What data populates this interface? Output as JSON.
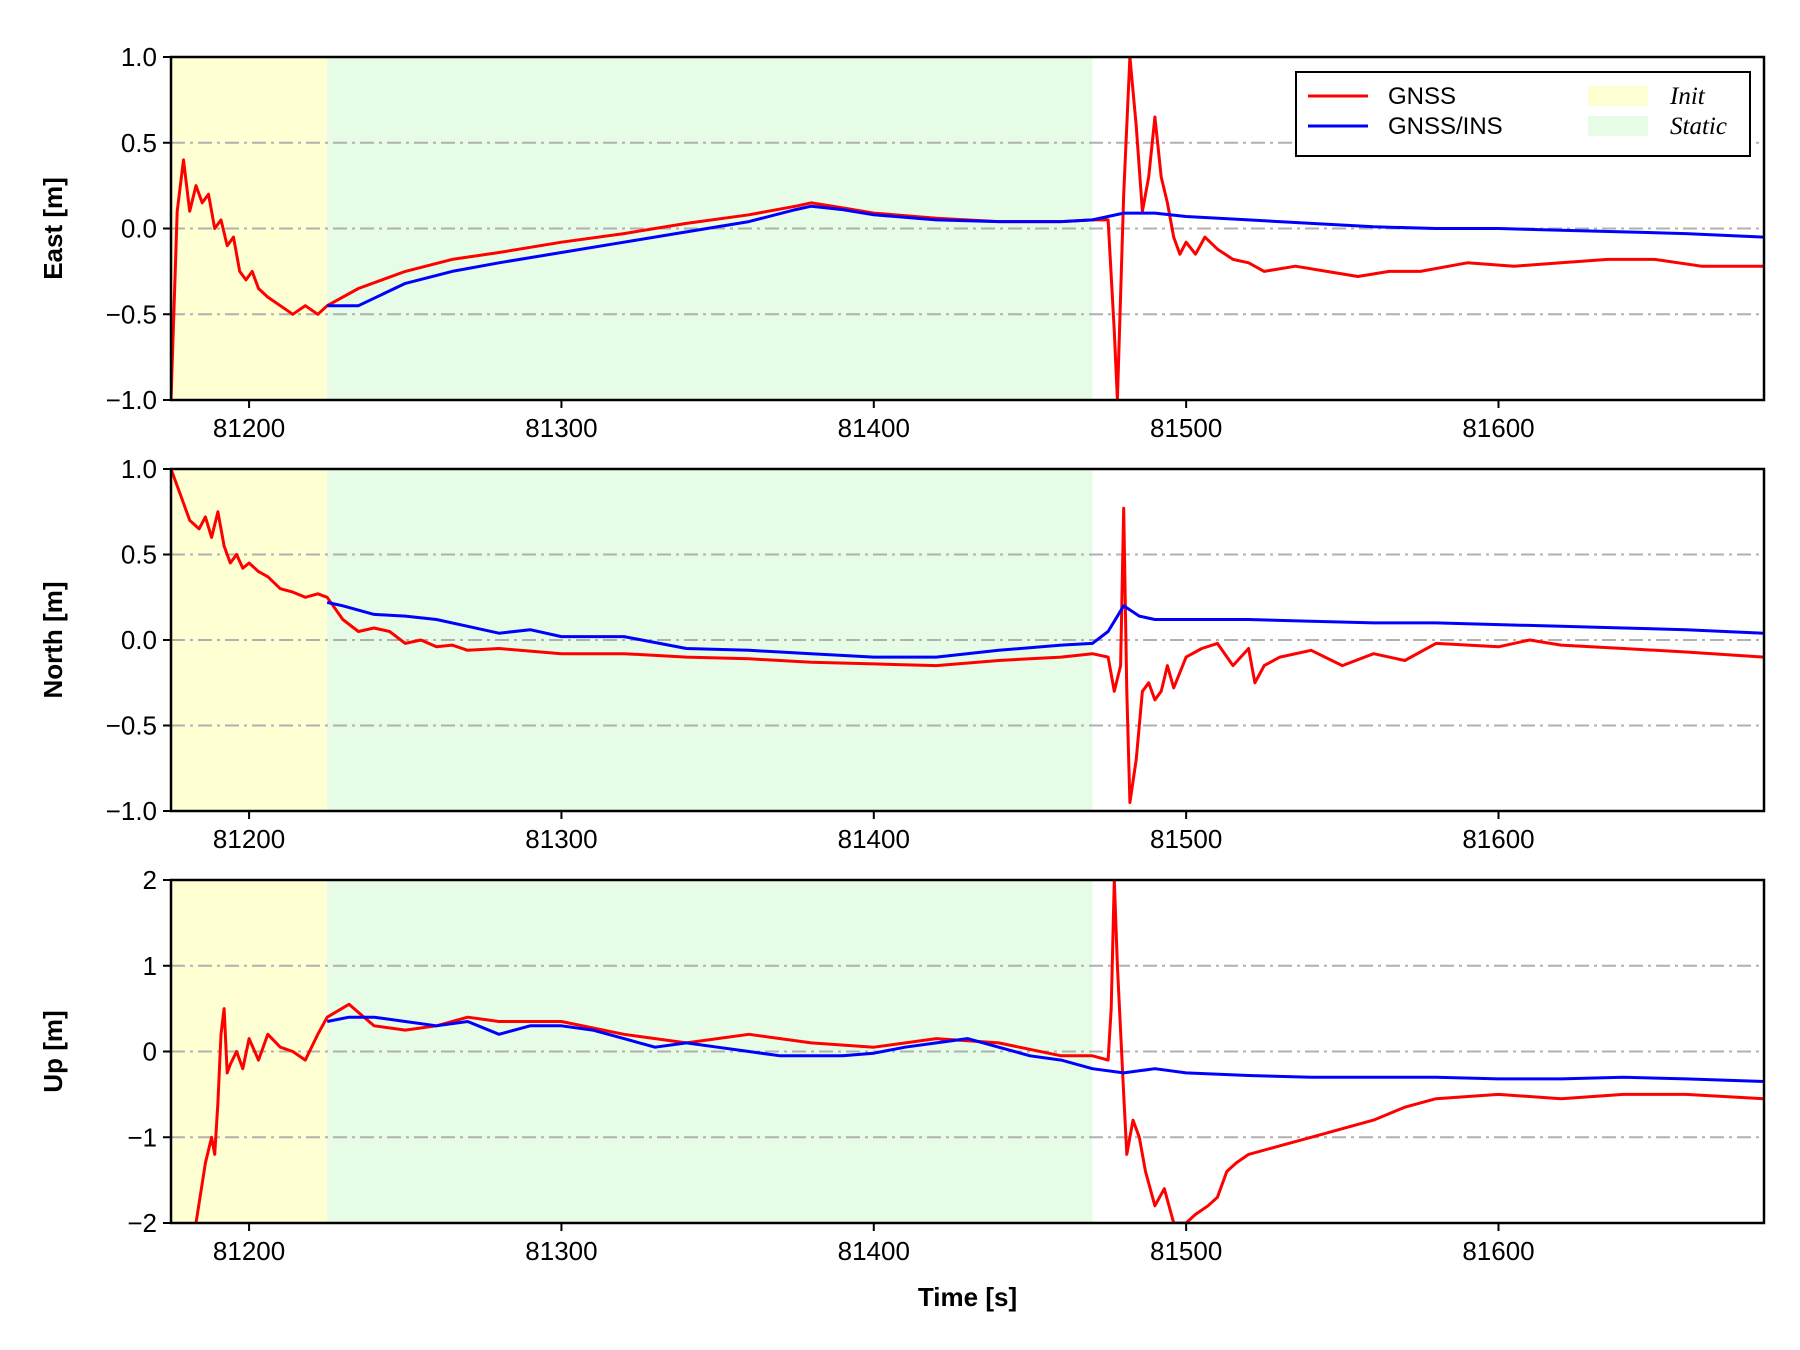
{
  "chart_data": {
    "type": "line",
    "layout": "3 vertically stacked subplots sharing the time axis",
    "xlabel": "Time [s]",
    "xlim": [
      81175,
      81685
    ],
    "xticks": [
      81200,
      81300,
      81400,
      81500,
      81600
    ],
    "xtick_labels": [
      "81200",
      "81300",
      "81400",
      "81500",
      "81600"
    ],
    "grid": "horizontal dash-dot gray lines at y ticks",
    "legend": {
      "placement": "top-right of first subplot",
      "entries": [
        {
          "label": "GNSS",
          "kind": "line",
          "color": "#ff0000"
        },
        {
          "label": "GNSS/INS",
          "kind": "line",
          "color": "#0000ff"
        },
        {
          "label": "Init",
          "kind": "patch",
          "color": "#ffffd4"
        },
        {
          "label": "Static",
          "kind": "patch",
          "color": "#e6fce6"
        }
      ]
    },
    "shaded_regions": [
      {
        "label": "Init",
        "x_start": 81175,
        "x_end": 81225,
        "color": "#ffffd4"
      },
      {
        "label": "Static",
        "x_start": 81225,
        "x_end": 81470,
        "color": "#e6fce6"
      }
    ],
    "subplots": [
      {
        "ylabel": "East [m]",
        "ylim": [
          -1.0,
          1.0
        ],
        "yticks": [
          -1.0,
          -0.5,
          0.0,
          0.5,
          1.0
        ],
        "ytick_labels": [
          "−1.0",
          "−0.5",
          "0.0",
          "0.5",
          "1.0"
        ],
        "series": [
          {
            "name": "GNSS",
            "color": "#ff0000",
            "x": [
              81175,
              81177,
              81179,
              81181,
              81183,
              81185,
              81187,
              81189,
              81191,
              81193,
              81195,
              81197,
              81199,
              81201,
              81203,
              81206,
              81210,
              81214,
              81218,
              81222,
              81225,
              81235,
              81250,
              81265,
              81280,
              81300,
              81320,
              81340,
              81360,
              81375,
              81380,
              81390,
              81400,
              81420,
              81440,
              81460,
              81470,
              81475,
              81477,
              81478,
              81480,
              81482,
              81484,
              81486,
              81488,
              81490,
              81492,
              81494,
              81496,
              81498,
              81500,
              81503,
              81506,
              81510,
              81515,
              81520,
              81525,
              81535,
              81545,
              81555,
              81565,
              81575,
              81590,
              81605,
              81620,
              81635,
              81650,
              81665,
              81685
            ],
            "y": [
              -1.0,
              0.1,
              0.4,
              0.1,
              0.25,
              0.15,
              0.2,
              0.0,
              0.05,
              -0.1,
              -0.05,
              -0.25,
              -0.3,
              -0.25,
              -0.35,
              -0.4,
              -0.45,
              -0.5,
              -0.45,
              -0.5,
              -0.45,
              -0.35,
              -0.25,
              -0.18,
              -0.14,
              -0.08,
              -0.03,
              0.03,
              0.08,
              0.13,
              0.15,
              0.12,
              0.09,
              0.06,
              0.04,
              0.04,
              0.05,
              0.05,
              -0.6,
              -1.0,
              0.2,
              1.0,
              0.6,
              0.1,
              0.3,
              0.65,
              0.3,
              0.15,
              -0.05,
              -0.15,
              -0.08,
              -0.15,
              -0.05,
              -0.12,
              -0.18,
              -0.2,
              -0.25,
              -0.22,
              -0.25,
              -0.28,
              -0.25,
              -0.25,
              -0.2,
              -0.22,
              -0.2,
              -0.18,
              -0.18,
              -0.22,
              -0.22
            ]
          },
          {
            "name": "GNSS/INS",
            "color": "#0000ff",
            "x": [
              81225,
              81235,
              81250,
              81265,
              81280,
              81300,
              81320,
              81340,
              81360,
              81375,
              81380,
              81390,
              81400,
              81420,
              81440,
              81460,
              81470,
              81480,
              81490,
              81500,
              81520,
              81540,
              81560,
              81580,
              81600,
              81620,
              81640,
              81660,
              81685
            ],
            "y": [
              -0.45,
              -0.45,
              -0.32,
              -0.25,
              -0.2,
              -0.14,
              -0.08,
              -0.02,
              0.04,
              0.11,
              0.13,
              0.11,
              0.08,
              0.05,
              0.04,
              0.04,
              0.05,
              0.09,
              0.09,
              0.07,
              0.05,
              0.03,
              0.01,
              0.0,
              0.0,
              -0.01,
              -0.02,
              -0.03,
              -0.05
            ]
          }
        ]
      },
      {
        "ylabel": "North [m]",
        "ylim": [
          -1.0,
          1.0
        ],
        "yticks": [
          -1.0,
          -0.5,
          0.0,
          0.5,
          1.0
        ],
        "ytick_labels": [
          "−1.0",
          "−0.5",
          "0.0",
          "0.5",
          "1.0"
        ],
        "series": [
          {
            "name": "GNSS",
            "color": "#ff0000",
            "x": [
              81175,
              81178,
              81181,
              81184,
              81186,
              81188,
              81190,
              81192,
              81194,
              81196,
              81198,
              81200,
              81203,
              81206,
              81210,
              81214,
              81218,
              81222,
              81225,
              81230,
              81235,
              81240,
              81245,
              81250,
              81255,
              81260,
              81265,
              81270,
              81280,
              81300,
              81320,
              81340,
              81360,
              81380,
              81400,
              81420,
              81440,
              81460,
              81470,
              81475,
              81477,
              81479,
              81480,
              81481,
              81482,
              81484,
              81486,
              81488,
              81490,
              81492,
              81494,
              81496,
              81500,
              81505,
              81510,
              81515,
              81520,
              81522,
              81525,
              81530,
              81540,
              81550,
              81560,
              81570,
              81580,
              81600,
              81610,
              81620,
              81640,
              81660,
              81685
            ],
            "y": [
              1.0,
              0.85,
              0.7,
              0.65,
              0.72,
              0.6,
              0.75,
              0.55,
              0.45,
              0.5,
              0.42,
              0.45,
              0.4,
              0.37,
              0.3,
              0.28,
              0.25,
              0.27,
              0.25,
              0.12,
              0.05,
              0.07,
              0.05,
              -0.02,
              0.0,
              -0.04,
              -0.03,
              -0.06,
              -0.05,
              -0.08,
              -0.08,
              -0.1,
              -0.11,
              -0.13,
              -0.14,
              -0.15,
              -0.12,
              -0.1,
              -0.08,
              -0.1,
              -0.3,
              -0.15,
              0.77,
              -0.3,
              -0.95,
              -0.7,
              -0.3,
              -0.25,
              -0.35,
              -0.3,
              -0.15,
              -0.28,
              -0.1,
              -0.05,
              -0.02,
              -0.15,
              -0.05,
              -0.25,
              -0.15,
              -0.1,
              -0.06,
              -0.15,
              -0.08,
              -0.12,
              -0.02,
              -0.04,
              0.0,
              -0.03,
              -0.05,
              -0.07,
              -0.1
            ]
          },
          {
            "name": "GNSS/INS",
            "color": "#0000ff",
            "x": [
              81225,
              81230,
              81240,
              81250,
              81260,
              81270,
              81280,
              81290,
              81300,
              81320,
              81340,
              81360,
              81380,
              81400,
              81420,
              81440,
              81460,
              81470,
              81475,
              81480,
              81485,
              81490,
              81500,
              81520,
              81540,
              81560,
              81580,
              81600,
              81620,
              81640,
              81660,
              81685
            ],
            "y": [
              0.22,
              0.2,
              0.15,
              0.14,
              0.12,
              0.08,
              0.04,
              0.06,
              0.02,
              0.02,
              -0.05,
              -0.06,
              -0.08,
              -0.1,
              -0.1,
              -0.06,
              -0.03,
              -0.02,
              0.05,
              0.2,
              0.14,
              0.12,
              0.12,
              0.12,
              0.11,
              0.1,
              0.1,
              0.09,
              0.08,
              0.07,
              0.06,
              0.04
            ]
          }
        ]
      },
      {
        "ylabel": "Up [m]",
        "ylim": [
          -2,
          2
        ],
        "yticks": [
          -2,
          -1,
          0,
          1,
          2
        ],
        "ytick_labels": [
          "−2",
          "−1",
          "0",
          "1",
          "2"
        ],
        "series": [
          {
            "name": "GNSS",
            "color": "#ff0000",
            "x": [
              81183,
              81186,
              81188,
              81189,
              81190,
              81191,
              81192,
              81193,
              81194,
              81196,
              81198,
              81200,
              81203,
              81206,
              81210,
              81214,
              81218,
              81222,
              81225,
              81232,
              81240,
              81250,
              81260,
              81270,
              81280,
              81290,
              81300,
              81320,
              81340,
              81360,
              81380,
              81400,
              81420,
              81440,
              81460,
              81470,
              81475,
              81476,
              81477,
              81478,
              81480,
              81481,
              81483,
              81485,
              81487,
              81490,
              81493,
              81496,
              81500,
              81503,
              81507,
              81510,
              81513,
              81516,
              81520,
              81530,
              81540,
              81550,
              81560,
              81570,
              81580,
              81600,
              81620,
              81640,
              81660,
              81685
            ],
            "y": [
              -2.0,
              -1.3,
              -1.0,
              -1.2,
              -0.6,
              0.2,
              0.5,
              -0.25,
              -0.15,
              0.0,
              -0.2,
              0.15,
              -0.1,
              0.2,
              0.05,
              0.0,
              -0.1,
              0.2,
              0.4,
              0.55,
              0.3,
              0.25,
              0.3,
              0.4,
              0.35,
              0.35,
              0.35,
              0.2,
              0.1,
              0.2,
              0.1,
              0.05,
              0.15,
              0.1,
              -0.05,
              -0.05,
              -0.1,
              0.5,
              2.0,
              1.0,
              -0.5,
              -1.2,
              -0.8,
              -1.0,
              -1.4,
              -1.8,
              -1.6,
              -2.0,
              -2.0,
              -1.9,
              -1.8,
              -1.7,
              -1.4,
              -1.3,
              -1.2,
              -1.1,
              -1.0,
              -0.9,
              -0.8,
              -0.65,
              -0.55,
              -0.5,
              -0.55,
              -0.5,
              -0.5,
              -0.55
            ]
          },
          {
            "name": "GNSS/INS",
            "color": "#0000ff",
            "x": [
              81225,
              81232,
              81240,
              81250,
              81260,
              81270,
              81280,
              81290,
              81300,
              81310,
              81320,
              81330,
              81340,
              81350,
              81360,
              81370,
              81380,
              81390,
              81400,
              81410,
              81420,
              81430,
              81440,
              81450,
              81460,
              81470,
              81480,
              81490,
              81500,
              81520,
              81540,
              81560,
              81580,
              81600,
              81620,
              81640,
              81660,
              81685
            ],
            "y": [
              0.35,
              0.4,
              0.4,
              0.35,
              0.3,
              0.35,
              0.2,
              0.3,
              0.3,
              0.25,
              0.15,
              0.05,
              0.1,
              0.05,
              0.0,
              -0.05,
              -0.05,
              -0.05,
              -0.02,
              0.05,
              0.1,
              0.15,
              0.05,
              -0.05,
              -0.1,
              -0.2,
              -0.25,
              -0.2,
              -0.25,
              -0.28,
              -0.3,
              -0.3,
              -0.3,
              -0.32,
              -0.32,
              -0.3,
              -0.32,
              -0.35
            ]
          }
        ]
      }
    ]
  }
}
